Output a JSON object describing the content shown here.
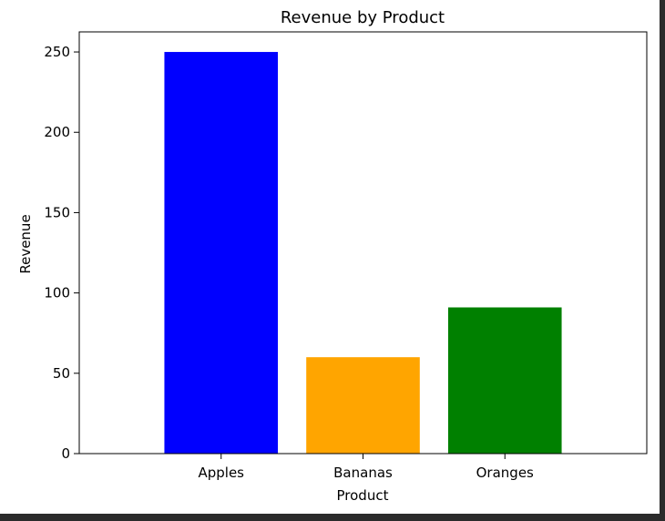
{
  "chart_data": {
    "type": "bar",
    "title": "Revenue by Product",
    "xlabel": "Product",
    "ylabel": "Revenue",
    "categories": [
      "Apples",
      "Bananas",
      "Oranges"
    ],
    "values": [
      250,
      60,
      91
    ],
    "colors": [
      "#0000ff",
      "#ffa500",
      "#008000"
    ],
    "ylim": [
      0,
      262.5
    ],
    "yticks": [
      0,
      50,
      100,
      150,
      200,
      250
    ],
    "grid": false,
    "legend": "none"
  }
}
